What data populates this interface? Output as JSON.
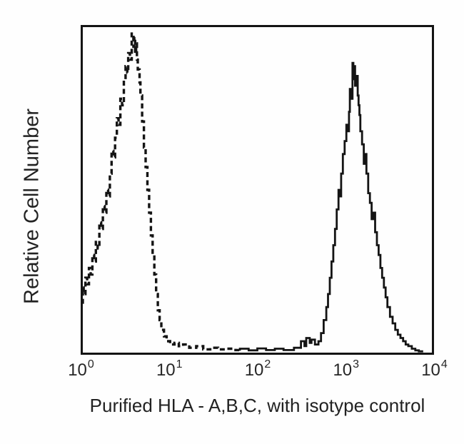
{
  "figure": {
    "kind": "flow-cytometry-histogram",
    "background_color": "#fefefe",
    "curve_color": "#141414"
  },
  "chart_data": {
    "type": "line",
    "title": "",
    "xlabel": "Purified HLA - A,B,C, with isotype control",
    "ylabel": "Relative Cell Number",
    "x_scale": "log10",
    "x_log_range": [
      0,
      4
    ],
    "x_tick_base": "10",
    "x_ticks": [
      "0",
      "1",
      "2",
      "3",
      "4"
    ],
    "y_axis": {
      "tick_labels": "none",
      "range_percent": [
        0,
        100
      ]
    },
    "grid": "off",
    "legend": "none",
    "series": [
      {
        "name": "isotype control",
        "data_name": "isotype-control-curve",
        "style": "dashed",
        "color": "#141414",
        "peak_x_value": 3.8,
        "peak_height_percent": 98,
        "points": [
          [
            0.0,
            15
          ],
          [
            0.01,
            20
          ],
          [
            0.03,
            18
          ],
          [
            0.05,
            23
          ],
          [
            0.07,
            21
          ],
          [
            0.09,
            26
          ],
          [
            0.11,
            24
          ],
          [
            0.13,
            30
          ],
          [
            0.15,
            28
          ],
          [
            0.17,
            34
          ],
          [
            0.19,
            32
          ],
          [
            0.21,
            40
          ],
          [
            0.23,
            38
          ],
          [
            0.25,
            45
          ],
          [
            0.27,
            43
          ],
          [
            0.29,
            50
          ],
          [
            0.31,
            48
          ],
          [
            0.33,
            55
          ],
          [
            0.35,
            62
          ],
          [
            0.37,
            60
          ],
          [
            0.39,
            66
          ],
          [
            0.41,
            72
          ],
          [
            0.43,
            70
          ],
          [
            0.45,
            78
          ],
          [
            0.47,
            76
          ],
          [
            0.49,
            84
          ],
          [
            0.51,
            88
          ],
          [
            0.52,
            86
          ],
          [
            0.54,
            92
          ],
          [
            0.56,
            90
          ],
          [
            0.58,
            98
          ],
          [
            0.59,
            94
          ],
          [
            0.6,
            97
          ],
          [
            0.61,
            92
          ],
          [
            0.62,
            95
          ],
          [
            0.63,
            90
          ],
          [
            0.65,
            87
          ],
          [
            0.66,
            83
          ],
          [
            0.68,
            79
          ],
          [
            0.7,
            71
          ],
          [
            0.72,
            63
          ],
          [
            0.74,
            57
          ],
          [
            0.76,
            50
          ],
          [
            0.78,
            43
          ],
          [
            0.8,
            36
          ],
          [
            0.82,
            30
          ],
          [
            0.84,
            24
          ],
          [
            0.86,
            18
          ],
          [
            0.88,
            13
          ],
          [
            0.9,
            10
          ],
          [
            0.93,
            7
          ],
          [
            0.96,
            5
          ],
          [
            1.0,
            3.5
          ],
          [
            1.05,
            2.5
          ],
          [
            1.1,
            3
          ],
          [
            1.15,
            2
          ],
          [
            1.22,
            2.5
          ],
          [
            1.3,
            1.5
          ],
          [
            1.38,
            2
          ],
          [
            1.46,
            1
          ],
          [
            1.55,
            1.5
          ],
          [
            1.65,
            1
          ],
          [
            1.75,
            1.2
          ],
          [
            1.8,
            0.8
          ]
        ]
      },
      {
        "name": "Purified HLA - A,B,C",
        "data_name": "hla-abc-curve",
        "style": "solid",
        "color": "#141414",
        "peak_x_value": 1260,
        "peak_height_percent": 89,
        "points": [
          [
            1.8,
            0.6
          ],
          [
            1.9,
            1.2
          ],
          [
            2.0,
            0.7
          ],
          [
            2.1,
            1.3
          ],
          [
            2.2,
            0.8
          ],
          [
            2.3,
            1.2
          ],
          [
            2.42,
            0.8
          ],
          [
            2.5,
            1.5
          ],
          [
            2.54,
            3.5
          ],
          [
            2.56,
            2
          ],
          [
            2.6,
            4.5
          ],
          [
            2.62,
            3
          ],
          [
            2.66,
            4
          ],
          [
            2.7,
            2.5
          ],
          [
            2.73,
            3.5
          ],
          [
            2.76,
            6
          ],
          [
            2.79,
            10
          ],
          [
            2.81,
            14
          ],
          [
            2.83,
            18
          ],
          [
            2.85,
            23
          ],
          [
            2.87,
            28
          ],
          [
            2.89,
            33
          ],
          [
            2.91,
            38
          ],
          [
            2.93,
            44
          ],
          [
            2.95,
            50
          ],
          [
            2.96,
            48
          ],
          [
            2.98,
            55
          ],
          [
            3.0,
            61
          ],
          [
            3.02,
            65
          ],
          [
            3.03,
            70
          ],
          [
            3.05,
            68
          ],
          [
            3.06,
            74
          ],
          [
            3.08,
            81
          ],
          [
            3.09,
            78
          ],
          [
            3.1,
            89
          ],
          [
            3.11,
            84
          ],
          [
            3.12,
            88
          ],
          [
            3.13,
            82
          ],
          [
            3.15,
            85
          ],
          [
            3.16,
            79
          ],
          [
            3.17,
            76
          ],
          [
            3.18,
            73
          ],
          [
            3.2,
            68
          ],
          [
            3.22,
            64
          ],
          [
            3.24,
            58
          ],
          [
            3.25,
            61
          ],
          [
            3.27,
            55
          ],
          [
            3.29,
            49
          ],
          [
            3.31,
            46
          ],
          [
            3.33,
            41
          ],
          [
            3.35,
            43
          ],
          [
            3.37,
            37
          ],
          [
            3.39,
            33
          ],
          [
            3.41,
            30
          ],
          [
            3.43,
            26
          ],
          [
            3.45,
            23
          ],
          [
            3.47,
            20
          ],
          [
            3.49,
            17
          ],
          [
            3.52,
            14
          ],
          [
            3.55,
            11
          ],
          [
            3.58,
            9
          ],
          [
            3.61,
            7
          ],
          [
            3.64,
            5.5
          ],
          [
            3.67,
            4.5
          ],
          [
            3.7,
            3.5
          ],
          [
            3.73,
            2.5
          ],
          [
            3.77,
            2
          ],
          [
            3.81,
            1.2
          ],
          [
            3.85,
            0.7
          ],
          [
            3.9,
            0.4
          ]
        ]
      }
    ]
  }
}
